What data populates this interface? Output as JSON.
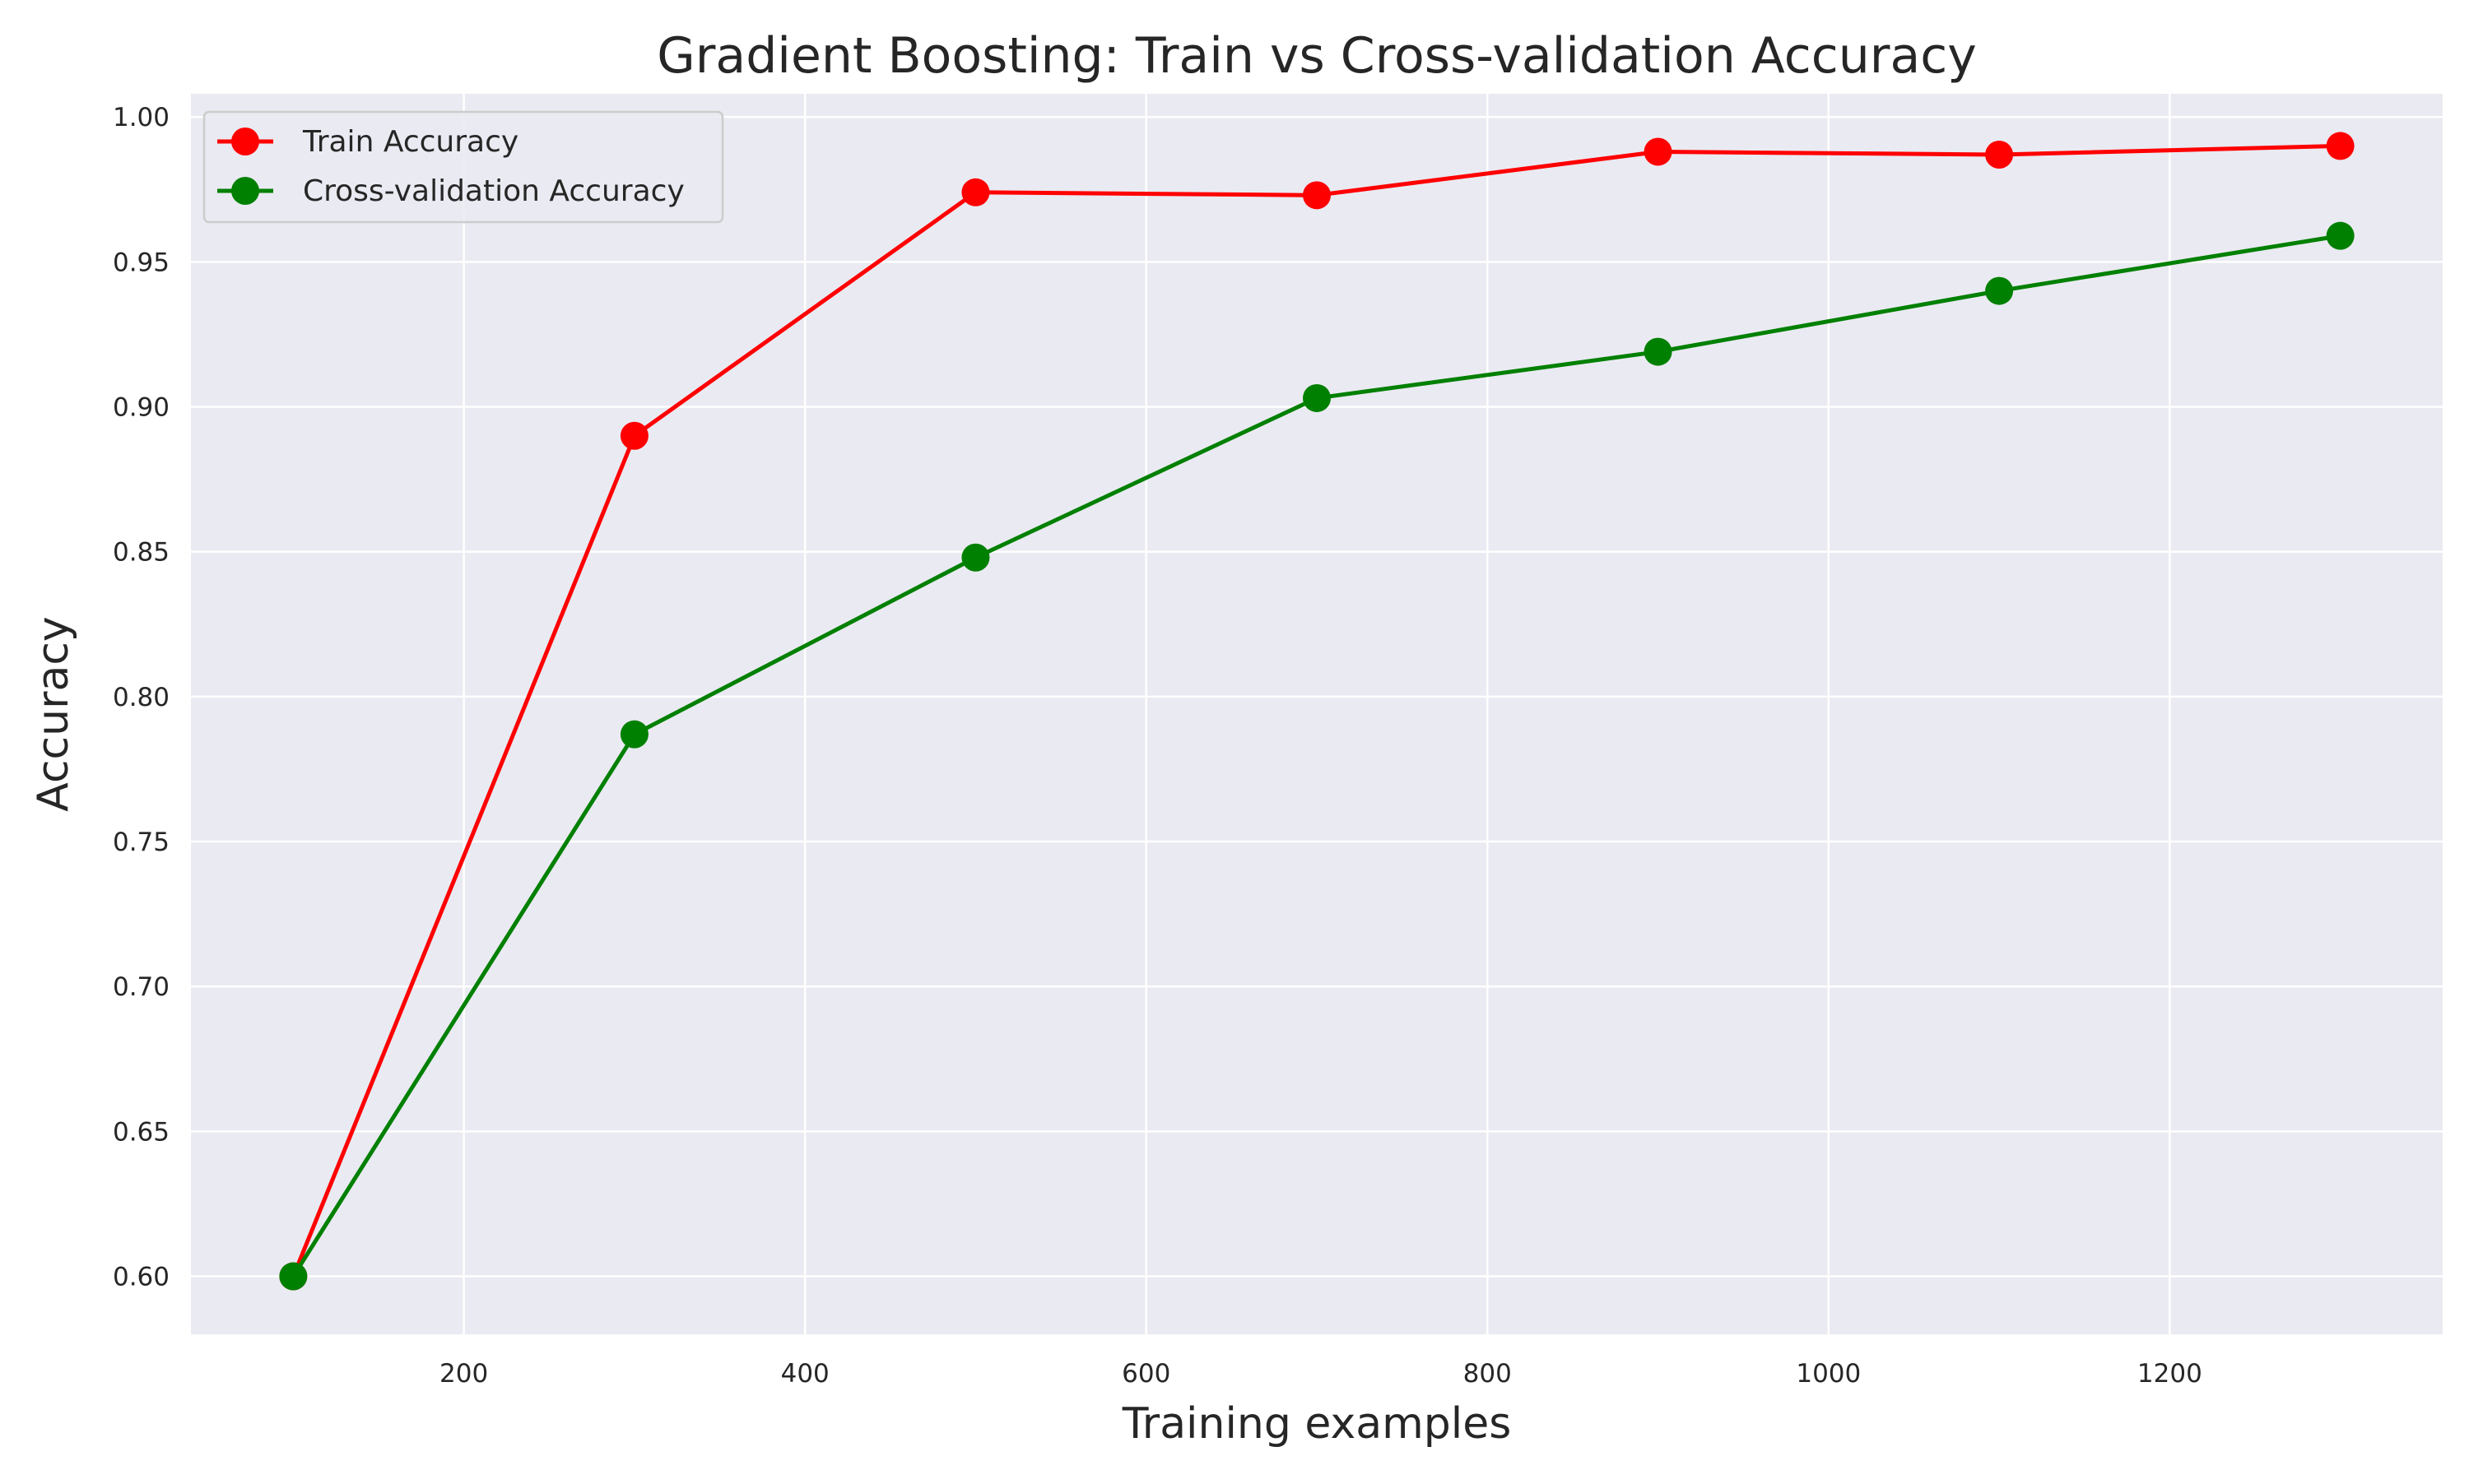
{
  "chart_data": {
    "type": "line",
    "title": "Gradient Boosting: Train vs Cross-validation Accuracy",
    "xlabel": "Training examples",
    "ylabel": "Accuracy",
    "x": [
      100,
      300,
      500,
      700,
      900,
      1100,
      1300
    ],
    "xlim": [
      40,
      1360
    ],
    "ylim": [
      0.58,
      1.008
    ],
    "xticks": [
      200,
      400,
      600,
      800,
      1000,
      1200
    ],
    "yticks": [
      0.6,
      0.65,
      0.7,
      0.75,
      0.8,
      0.85,
      0.9,
      0.95,
      1.0
    ],
    "xtick_labels": [
      "200",
      "400",
      "600",
      "800",
      "1000",
      "1200"
    ],
    "ytick_labels": [
      "0.60",
      "0.65",
      "0.70",
      "0.75",
      "0.80",
      "0.85",
      "0.90",
      "0.95",
      "1.00"
    ],
    "grid": true,
    "legend_position": "upper-left",
    "series": [
      {
        "name": "Train Accuracy",
        "color": "#ff0000",
        "values": [
          0.6,
          0.89,
          0.974,
          0.973,
          0.988,
          0.987,
          0.99
        ]
      },
      {
        "name": "Cross-validation Accuracy",
        "color": "#008000",
        "values": [
          0.6,
          0.787,
          0.848,
          0.903,
          0.919,
          0.94,
          0.959
        ]
      }
    ],
    "colors": {
      "plot_background": "#eaeaf2",
      "grid": "#ffffff",
      "text": "#262626"
    }
  }
}
